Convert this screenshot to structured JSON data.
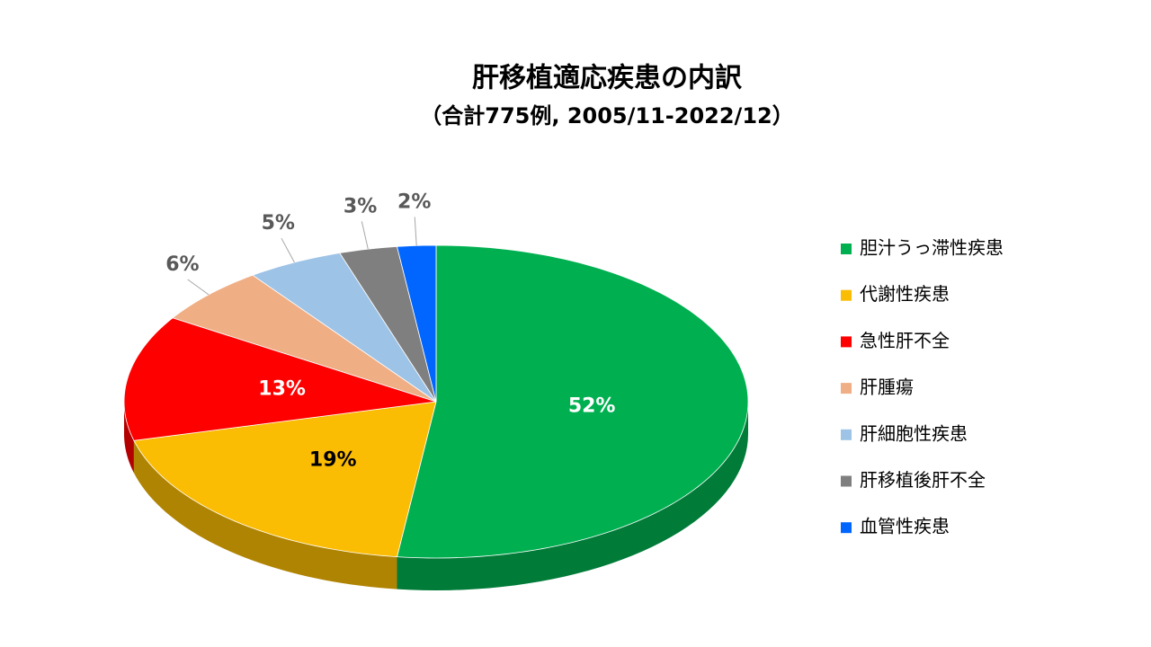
{
  "chart_data": {
    "type": "pie",
    "title": "肝移植適応疾患の内訳",
    "subtitle": "（合計775例, 2005/11-2022/12）",
    "categories": [
      "胆汁うっ滞性疾患",
      "代謝性疾患",
      "急性肝不全",
      "肝腫瘍",
      "肝細胞性疾患",
      "肝移植後肝不全",
      "血管性疾患"
    ],
    "values": [
      52,
      19,
      13,
      6,
      5,
      3,
      2
    ],
    "value_labels": [
      "52%",
      "19%",
      "13%",
      "6%",
      "5%",
      "3%",
      "2%"
    ],
    "colors": [
      "#00b050",
      "#fbbc04",
      "#ff0000",
      "#f0ae84",
      "#9dc3e6",
      "#7f7f7f",
      "#0066ff"
    ],
    "legend": "right"
  }
}
